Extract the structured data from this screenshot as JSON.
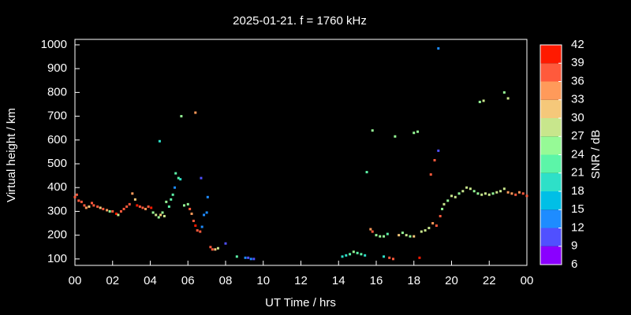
{
  "chart_data": {
    "type": "scatter",
    "title": "2025-01-21. f = 1760 kHz",
    "x_label": "UT Time / hrs",
    "y_label": "Virtual height / km",
    "xlim": [
      0,
      24
    ],
    "xticks": [
      {
        "value": 0,
        "label": "00"
      },
      {
        "value": 2,
        "label": "02"
      },
      {
        "value": 4,
        "label": "04"
      },
      {
        "value": 6,
        "label": "06"
      },
      {
        "value": 8,
        "label": "08"
      },
      10,
      12,
      14,
      16,
      18,
      20,
      22,
      {
        "value": 24,
        "label": "00"
      }
    ],
    "ylim": [
      73,
      1023
    ],
    "yticks": [
      100,
      200,
      300,
      400,
      500,
      600,
      700,
      800,
      900,
      1000
    ],
    "colorbar": {
      "label": "SNR / dB",
      "lim": [
        6,
        42
      ],
      "ticks": [
        6,
        9,
        12,
        15,
        18,
        21,
        24,
        27,
        30,
        33,
        36,
        39,
        42
      ],
      "colors": [
        "#8a00ff",
        "#5050ff",
        "#1e8cff",
        "#00bfe6",
        "#2ee0c8",
        "#5cf5a8",
        "#96fa96",
        "#c8e68c",
        "#f5c87a",
        "#ff9a5a",
        "#ff5a3c",
        "#ff1a00"
      ]
    },
    "x": [
      0.0,
      0.1,
      0.2,
      0.35,
      0.5,
      0.6,
      0.75,
      0.9,
      1.0,
      1.2,
      1.35,
      1.5,
      1.7,
      1.85,
      2.0,
      2.2,
      2.3,
      2.45,
      2.6,
      2.75,
      2.9,
      3.05,
      3.2,
      3.3,
      3.45,
      3.6,
      3.75,
      3.9,
      4.05,
      4.15,
      4.3,
      4.45,
      4.55,
      4.65,
      4.75,
      4.85,
      5.0,
      5.1,
      5.2,
      5.3,
      5.35,
      5.5,
      5.6,
      4.5,
      5.65,
      6.0,
      5.8,
      6.1,
      6.2,
      6.3,
      6.4,
      6.5,
      6.65,
      6.7,
      6.75,
      6.85,
      7.0,
      7.05,
      7.2,
      7.3,
      7.45,
      7.6,
      6.4,
      8.0,
      8.6,
      9.05,
      9.2,
      9.35,
      9.5,
      14.2,
      14.4,
      14.6,
      14.8,
      15.0,
      15.2,
      15.4,
      15.5,
      15.7,
      15.8,
      16.0,
      16.2,
      16.4,
      16.6,
      16.4,
      16.7,
      16.9,
      15.8,
      17.0,
      17.2,
      17.4,
      17.6,
      17.8,
      18.0,
      18.0,
      18.2,
      18.3,
      18.4,
      18.6,
      18.8,
      18.9,
      19.0,
      19.1,
      19.2,
      19.3,
      19.4,
      19.5,
      19.6,
      19.8,
      20.0,
      20.2,
      20.4,
      20.6,
      20.8,
      21.0,
      21.2,
      21.4,
      21.6,
      21.8,
      22.0,
      22.2,
      22.4,
      22.6,
      22.8,
      23.0,
      23.2,
      23.4,
      23.6,
      23.8,
      24.0,
      19.3,
      21.5,
      21.7,
      22.8,
      23.0
    ],
    "values": [
      360,
      370,
      345,
      340,
      325,
      315,
      320,
      335,
      325,
      320,
      315,
      310,
      305,
      300,
      300,
      290,
      285,
      300,
      310,
      320,
      330,
      375,
      350,
      325,
      320,
      315,
      310,
      320,
      315,
      295,
      285,
      275,
      285,
      295,
      280,
      340,
      320,
      350,
      370,
      400,
      460,
      440,
      435,
      595,
      700,
      330,
      325,
      310,
      290,
      260,
      240,
      220,
      215,
      440,
      235,
      285,
      295,
      360,
      150,
      140,
      140,
      145,
      715,
      165,
      110,
      105,
      105,
      100,
      100,
      110,
      115,
      120,
      130,
      125,
      120,
      115,
      465,
      225,
      215,
      200,
      195,
      195,
      205,
      110,
      105,
      100,
      640,
      615,
      200,
      210,
      200,
      195,
      195,
      630,
      635,
      105,
      215,
      220,
      230,
      455,
      250,
      515,
      240,
      555,
      280,
      310,
      330,
      345,
      365,
      360,
      375,
      385,
      400,
      395,
      385,
      375,
      370,
      375,
      370,
      375,
      380,
      385,
      395,
      380,
      375,
      370,
      380,
      375,
      365,
      985,
      760,
      765,
      800,
      775
    ],
    "snr": [
      38,
      37,
      36,
      38,
      37,
      34,
      30,
      38,
      36,
      37,
      30,
      37,
      35,
      26,
      38,
      39,
      28,
      36,
      37,
      38,
      36,
      34,
      31,
      39,
      36,
      37,
      33,
      37,
      39,
      24,
      27,
      24,
      30,
      24,
      27,
      26,
      22,
      23,
      21,
      14,
      23,
      22,
      20,
      19,
      24,
      24,
      26,
      38,
      34,
      38,
      39,
      36,
      37,
      11,
      12,
      12,
      12,
      12,
      36,
      38,
      31,
      29,
      33,
      11,
      21,
      12,
      11,
      12,
      11,
      19,
      20,
      21,
      24,
      23,
      22,
      19,
      22,
      33,
      36,
      24,
      25,
      24,
      21,
      20,
      38,
      36,
      25,
      24,
      30,
      24,
      27,
      26,
      30,
      25,
      24,
      39,
      27,
      29,
      28,
      36,
      33,
      38,
      37,
      11,
      38,
      25,
      28,
      26,
      27,
      28,
      26,
      27,
      29,
      28,
      26,
      25,
      27,
      28,
      29,
      26,
      28,
      27,
      29,
      33,
      35,
      36,
      34,
      36,
      37,
      14,
      26,
      27,
      26,
      27
    ]
  }
}
